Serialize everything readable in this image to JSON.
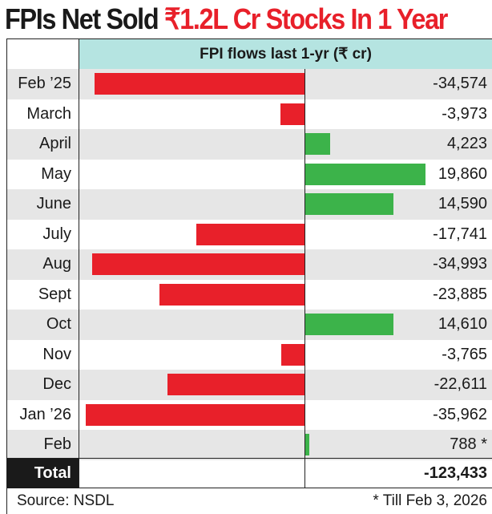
{
  "title": {
    "part1": "FPIs Net Sold ",
    "part2": "₹1.2L Cr Stocks In 1 Year"
  },
  "chart_data": {
    "type": "bar",
    "orientation": "horizontal",
    "header": "FPI flows last 1-yr (₹ cr)",
    "categories": [
      "Feb ’25",
      "March",
      "April",
      "May",
      "June",
      "July",
      "Aug",
      "Sept",
      "Oct",
      "Nov",
      "Dec",
      "Jan ’26",
      "Feb"
    ],
    "values": [
      -34574,
      -3973,
      4223,
      19860,
      14590,
      -17741,
      -34993,
      -23885,
      14610,
      -3765,
      -22611,
      -35962,
      788
    ],
    "value_labels": [
      "-34,574",
      "-3,973",
      "4,223",
      "19,860",
      "14,590",
      "-17,741",
      "-34,993",
      "-23,885",
      "14,610",
      "-3,765",
      "-22,611",
      "-35,962",
      "788 *"
    ],
    "colors": {
      "negative": "#e8202a",
      "positive": "#3cb34a",
      "header_bg": "#b5e4e1",
      "row_alt": "#e6e6e6"
    },
    "total_label": "Total",
    "total_value": "-123,433"
  },
  "footer": {
    "source": "Source: NSDL",
    "note": "* Till Feb 3, 2026"
  }
}
